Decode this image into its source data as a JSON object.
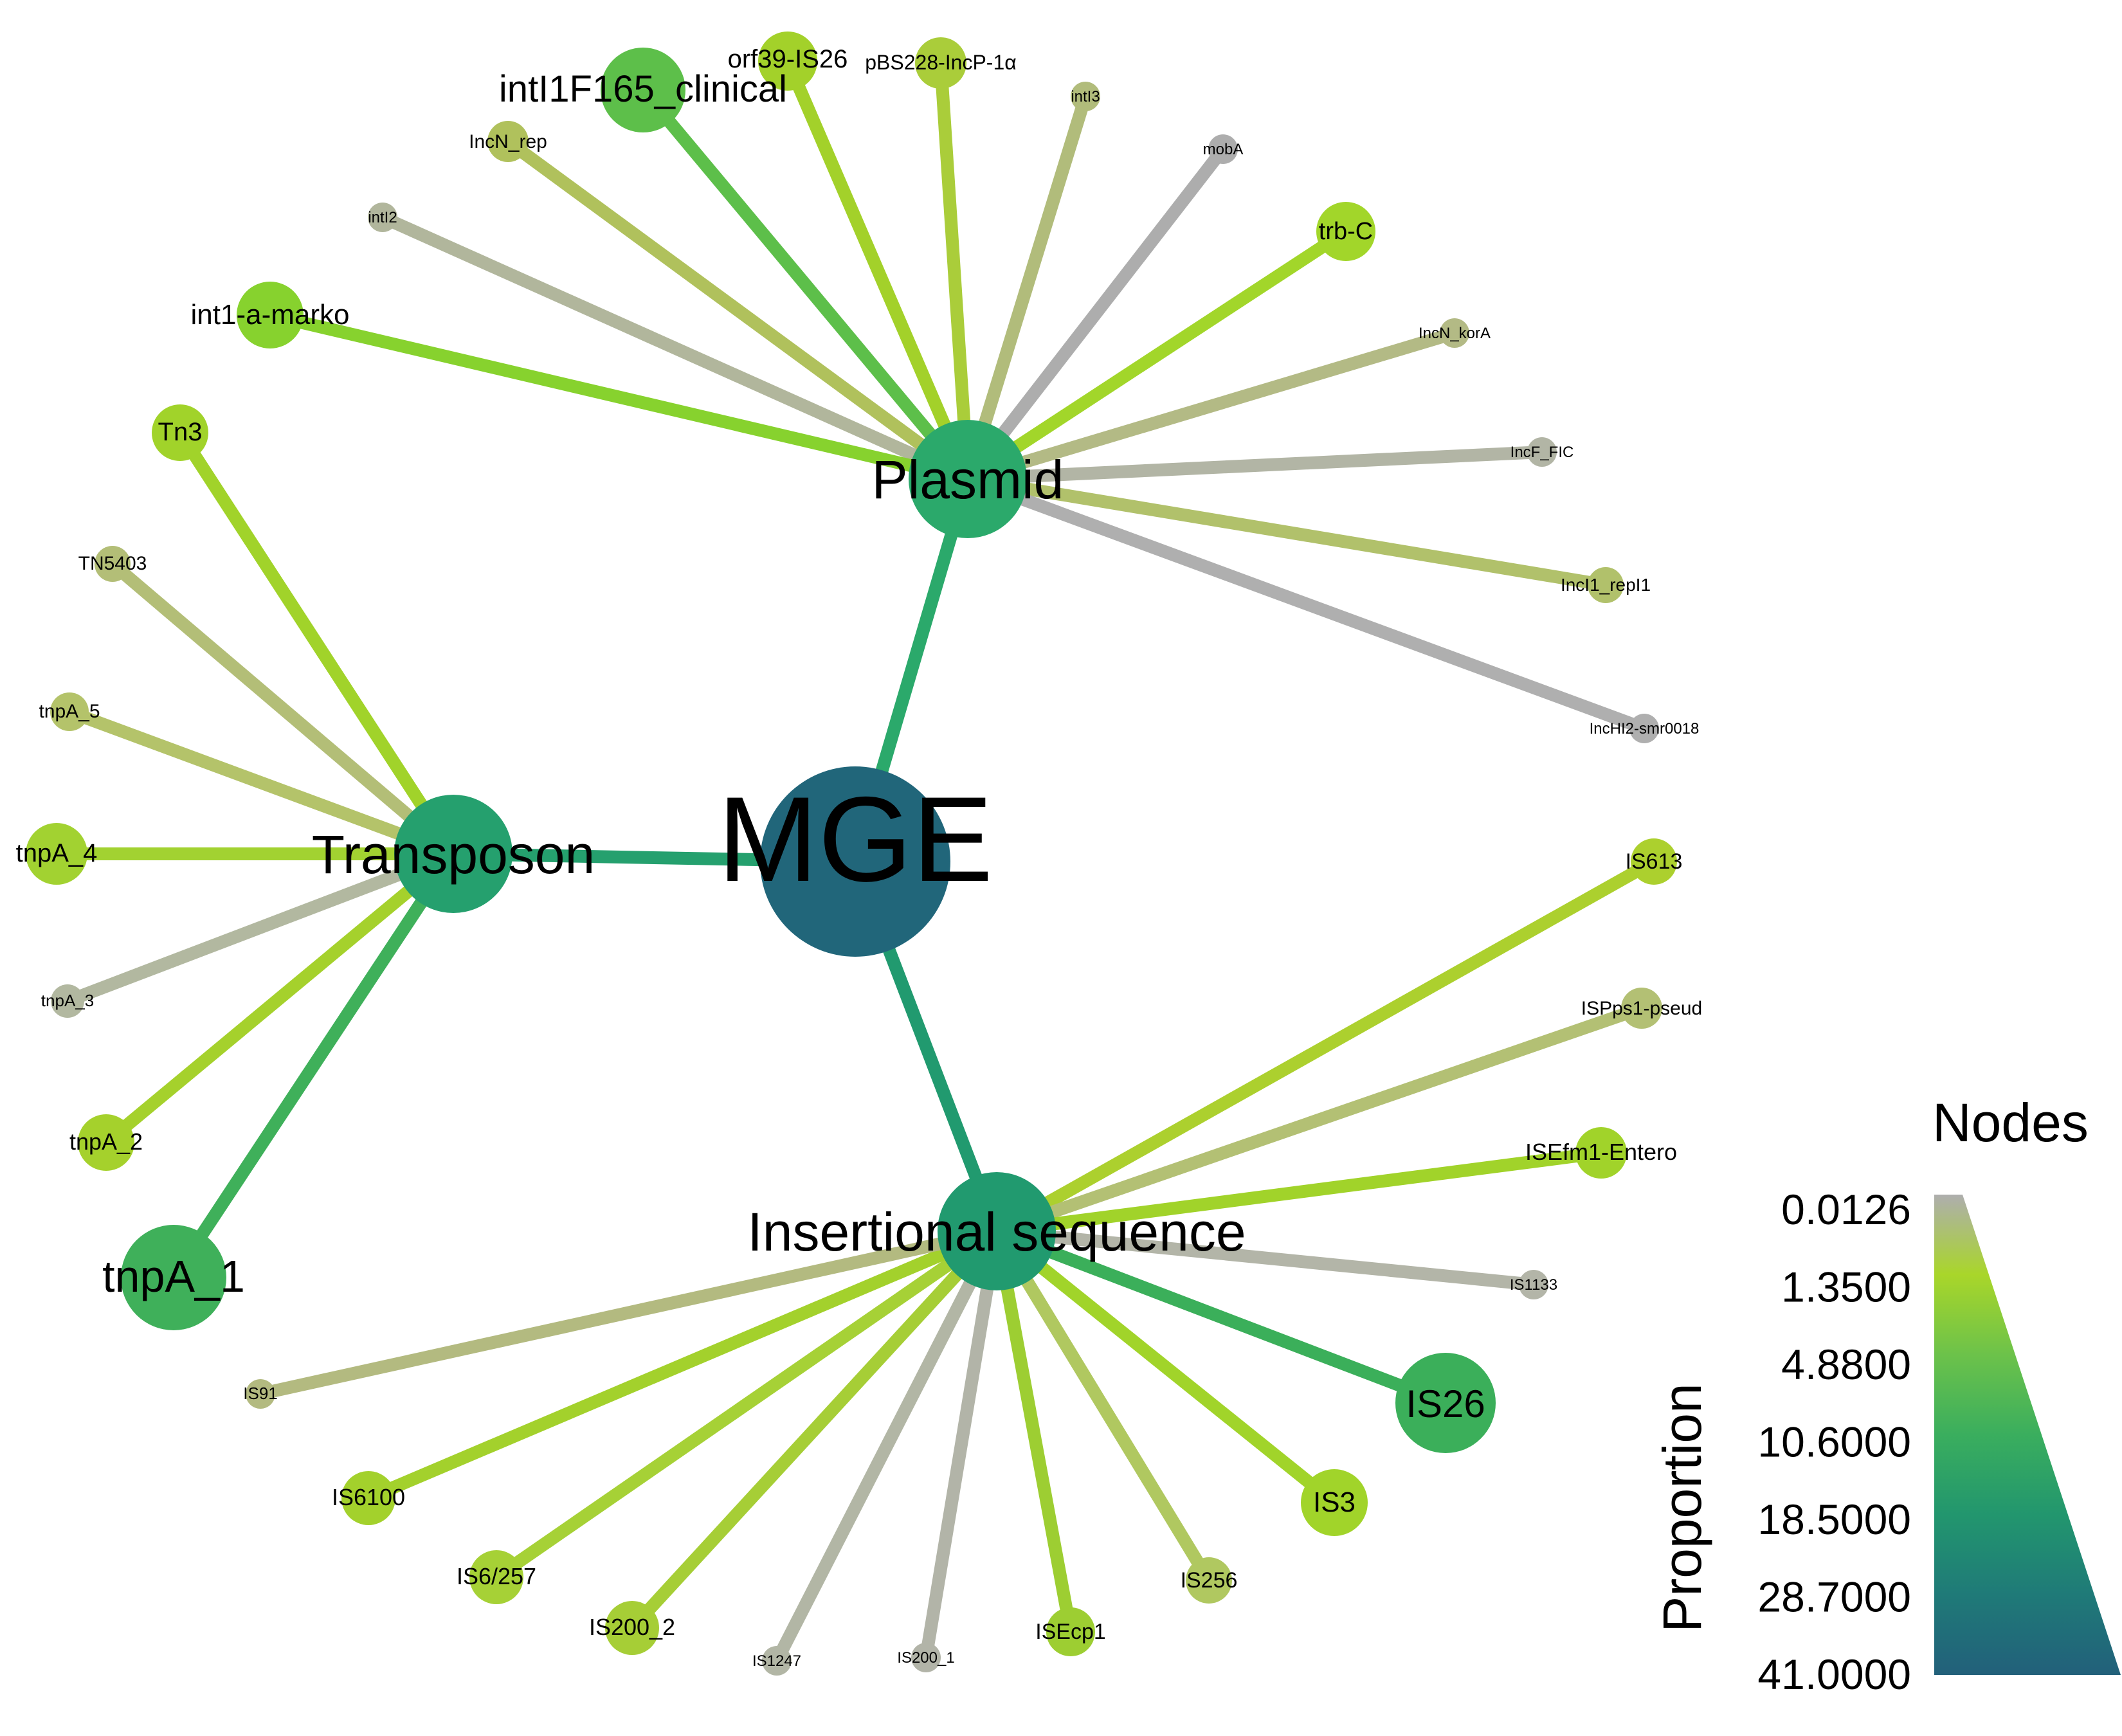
{
  "center": {
    "label": "MGE",
    "color": "#21667A"
  },
  "hubs": [
    {
      "id": "plasmid",
      "label": "Plasmid",
      "color": "#2BA96B"
    },
    {
      "id": "transposon",
      "label": "Transposon",
      "color": "#25A06E"
    },
    {
      "id": "insertional",
      "label": "Insertional sequence",
      "color": "#219A6F"
    }
  ],
  "leaves": [
    {
      "hub": "plasmid",
      "label": "intI1F165_clinical",
      "color": "#5DBF4A"
    },
    {
      "hub": "plasmid",
      "label": "orf39-IS26",
      "color": "#A3D12A"
    },
    {
      "hub": "plasmid",
      "label": "pBS228-IncP-1α",
      "color": "#AACD3A"
    },
    {
      "hub": "plasmid",
      "label": "intI3",
      "color": "#B1BC7B"
    },
    {
      "hub": "plasmid",
      "label": "mobA",
      "color": "#ADADAD"
    },
    {
      "hub": "plasmid",
      "label": "trb-C",
      "color": "#A2D62A"
    },
    {
      "hub": "plasmid",
      "label": "IncN_korA",
      "color": "#B3BA85"
    },
    {
      "hub": "plasmid",
      "label": "IncF_FIC",
      "color": "#B2B5A5"
    },
    {
      "hub": "plasmid",
      "label": "IncI1_repI1",
      "color": "#B1C16B"
    },
    {
      "hub": "plasmid",
      "label": "IncHI2-smr0018",
      "color": "#AFAFAF"
    },
    {
      "hub": "plasmid",
      "label": "IncN_rep",
      "color": "#B0C15C"
    },
    {
      "hub": "plasmid",
      "label": "intI2",
      "color": "#B1B69C"
    },
    {
      "hub": "plasmid",
      "label": "int1-a-marko",
      "color": "#87D22E"
    },
    {
      "hub": "transposon",
      "label": "Tn3",
      "color": "#A1D32A"
    },
    {
      "hub": "transposon",
      "label": "TN5403",
      "color": "#B3BE77"
    },
    {
      "hub": "transposon",
      "label": "tnpA_5",
      "color": "#B4C36A"
    },
    {
      "hub": "transposon",
      "label": "tnpA_4",
      "color": "#A2D231"
    },
    {
      "hub": "transposon",
      "label": "tnpA_3",
      "color": "#B2B8A0"
    },
    {
      "hub": "transposon",
      "label": "tnpA_2",
      "color": "#A5D12C"
    },
    {
      "hub": "transposon",
      "label": "tnpA_1",
      "color": "#3FB05A"
    },
    {
      "hub": "insertional",
      "label": "IS613",
      "color": "#ACD02E"
    },
    {
      "hub": "insertional",
      "label": "ISPps1-pseud",
      "color": "#B3C074"
    },
    {
      "hub": "insertional",
      "label": "ISEfm1-Entero",
      "color": "#A1D32A"
    },
    {
      "hub": "insertional",
      "label": "IS1133",
      "color": "#B3B5A8"
    },
    {
      "hub": "insertional",
      "label": "IS26",
      "color": "#3BAF5A"
    },
    {
      "hub": "insertional",
      "label": "IS3",
      "color": "#A1D42A"
    },
    {
      "hub": "insertional",
      "label": "IS256",
      "color": "#B0C860"
    },
    {
      "hub": "insertional",
      "label": "ISEcp1",
      "color": "#9DCE32"
    },
    {
      "hub": "insertional",
      "label": "IS200_1",
      "color": "#B2B4A8"
    },
    {
      "hub": "insertional",
      "label": "IS1247",
      "color": "#B2B6A5"
    },
    {
      "hub": "insertional",
      "label": "IS200_2",
      "color": "#A6CE36"
    },
    {
      "hub": "insertional",
      "label": "IS6/257",
      "color": "#A6D136"
    },
    {
      "hub": "insertional",
      "label": "IS6100",
      "color": "#A3D12C"
    },
    {
      "hub": "insertional",
      "label": "IS91",
      "color": "#B3BA80"
    }
  ],
  "legend": {
    "title": "Nodes",
    "axis_label": "Proportion",
    "ticks": [
      "0.0126",
      "1.3500",
      "4.8800",
      "10.6000",
      "18.5000",
      "28.7000",
      "41.0000"
    ],
    "gradient_colors": [
      "#AEAEAE",
      "#A9D62A",
      "#6CC24A",
      "#3AAE5E",
      "#22966E",
      "#1F7A78",
      "#22607A"
    ]
  }
}
